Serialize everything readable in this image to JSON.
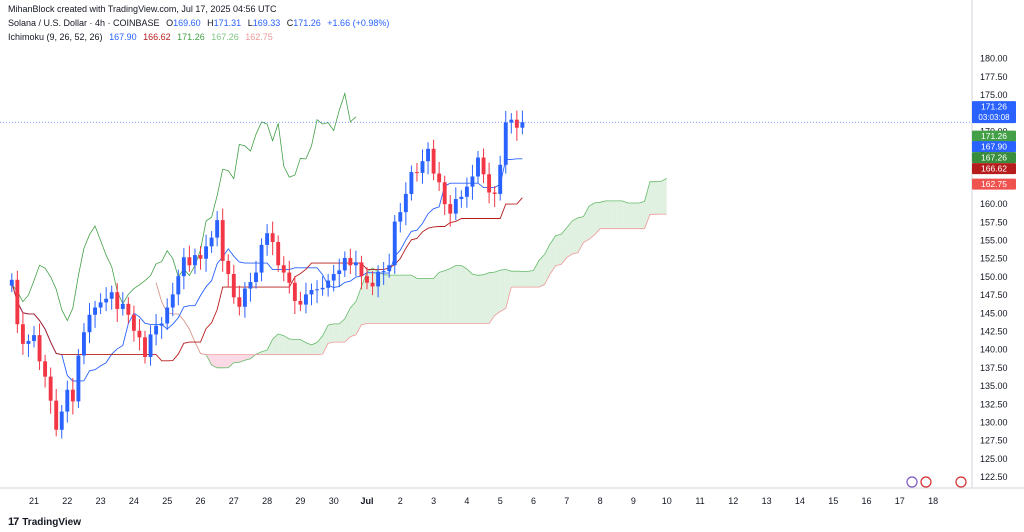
{
  "header": {
    "credit": "MihanBlock created with TradingView.com, Jul 17, 2025 04:56 UTC"
  },
  "legend": {
    "symbol": "Solana / U.S. Dollar · 4h · COINBASE",
    "o_label": "O",
    "o": "169.60",
    "h_label": "H",
    "h": "171.31",
    "l_label": "L",
    "l": "169.33",
    "c_label": "C",
    "c": "171.26",
    "change": "+1.66 (+0.98%)",
    "ichimoku_label": "Ichimoku (9, 26, 52, 26)",
    "ichimoku_values": [
      "167.90",
      "166.62",
      "171.26",
      "167.26",
      "162.75"
    ]
  },
  "price_tags": [
    {
      "value": "171.26",
      "sub": "03:03:08",
      "color": "#2962ff"
    },
    {
      "value": "171.26",
      "color": "#43a047"
    },
    {
      "value": "167.90",
      "color": "#2962ff"
    },
    {
      "value": "167.26",
      "color": "#388e3c"
    },
    {
      "value": "166.62",
      "color": "#b71c1c"
    },
    {
      "value": "162.75",
      "color": "#ef5350"
    }
  ],
  "branding": {
    "logo": "17",
    "name": "TradingView"
  },
  "colors": {
    "up": "#2962ff",
    "down": "#f23645",
    "tenkan": "#2962ff",
    "kijun": "#b71c1c",
    "chikou": "#43a047",
    "cloud_bull": "#c8e6c9",
    "cloud_bear": "#f8bbd0",
    "last_line": "#2962ff"
  },
  "chart_data": {
    "type": "candlestick",
    "title": "Solana / U.S. Dollar · 4h · COINBASE",
    "ylim": [
      121,
      182
    ],
    "y_ticks": [
      "180.00",
      "177.50",
      "175.00",
      "172.50",
      "170.00",
      "167.50",
      "165.00",
      "162.50",
      "160.00",
      "157.50",
      "155.00",
      "152.50",
      "150.00",
      "147.50",
      "145.00",
      "142.50",
      "140.00",
      "137.50",
      "135.00",
      "132.50",
      "130.00",
      "127.50",
      "125.00",
      "122.50"
    ],
    "x_ticks": [
      "21",
      "22",
      "23",
      "24",
      "25",
      "26",
      "27",
      "28",
      "29",
      "30",
      "Jul",
      "2",
      "3",
      "4",
      "5",
      "6",
      "7",
      "8",
      "9",
      "10",
      "11",
      "12",
      "13",
      "14",
      "15",
      "16",
      "17",
      "18"
    ],
    "last_price": 171.26,
    "closes": [
      149.6,
      143.5,
      140.8,
      141.2,
      142.0,
      138.4,
      136.3,
      133.0,
      129.0,
      131.5,
      134.5,
      132.9,
      139.2,
      142.4,
      144.8,
      145.8,
      146.5,
      147.0,
      147.9,
      145.6,
      146.3,
      144.8,
      142.6,
      141.7,
      139.0,
      142.1,
      143.3,
      143.6,
      145.8,
      147.6,
      150.1,
      152.7,
      151.6,
      153.0,
      152.5,
      154.2,
      155.4,
      157.8,
      152.2,
      150.4,
      147.2,
      145.9,
      148.4,
      149.3,
      150.6,
      154.4,
      156.0,
      154.8,
      151.6,
      150.6,
      149.2,
      146.7,
      146.2,
      147.6,
      148.2,
      148.3,
      148.5,
      149.5,
      150.4,
      150.9,
      152.6,
      151.6,
      152.0,
      150.1,
      149.2,
      148.7,
      150.7,
      150.8,
      151.6,
      157.6,
      158.9,
      161.4,
      164.4,
      164.3,
      165.9,
      167.6,
      164.2,
      163.0,
      160.0,
      158.7,
      160.7,
      161.0,
      162.4,
      163.8,
      166.4,
      164.1,
      161.6,
      161.4,
      165.4,
      171.2,
      171.6,
      170.5,
      171.26
    ],
    "chikou": [
      149.0,
      148.0,
      146.6,
      147.5,
      149.5,
      151.6,
      151.2,
      150.0,
      148.3,
      145.5,
      144.0,
      145.7,
      150.2,
      153.9,
      155.8,
      157.0,
      155.0,
      153.0,
      151.4,
      148.0,
      146.3,
      147.6,
      148.4,
      148.9,
      149.5,
      150.2,
      151.8,
      152.1,
      153.6,
      152.5,
      150.0,
      151.1,
      150.2,
      151.6,
      153.7,
      157.7,
      158.2,
      161.2,
      164.8,
      164.6,
      163.5,
      168.2,
      168.0,
      167.3,
      169.6,
      171.3,
      171.0,
      168.7,
      171.1,
      165.2,
      163.7,
      164.0,
      166.3,
      166.2,
      168.0,
      171.6,
      171.0,
      171.2,
      170.1,
      172.9,
      175.2,
      171.3,
      172.0
    ],
    "tenkan_last": 167.9,
    "kijun_last": 166.62,
    "span_a_last": 167.26,
    "span_b_last": 162.75
  }
}
